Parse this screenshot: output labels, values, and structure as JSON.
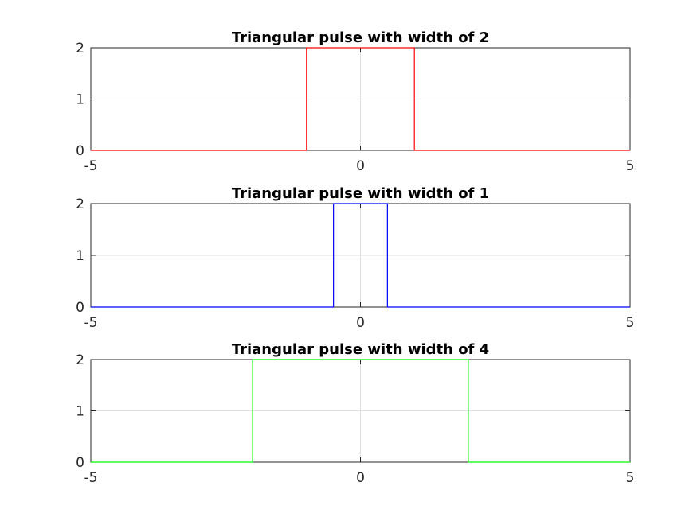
{
  "chart_data": [
    {
      "type": "line",
      "title": "Triangular pulse with width of 2",
      "xlim": [
        -5,
        5
      ],
      "ylim": [
        0,
        2
      ],
      "xticks": [
        -5,
        0,
        5
      ],
      "xtick_labels": [
        "-5",
        "0",
        "5"
      ],
      "yticks": [
        0,
        1,
        2
      ],
      "ytick_labels": [
        "0",
        "1",
        "2"
      ],
      "grid": true,
      "series": [
        {
          "color": "#ff0000",
          "x": [
            -5,
            -1,
            -1,
            1,
            1,
            5
          ],
          "y": [
            0,
            0,
            2,
            2,
            0,
            0
          ]
        }
      ]
    },
    {
      "type": "line",
      "title": "Triangular pulse with width of 1",
      "xlim": [
        -5,
        5
      ],
      "ylim": [
        0,
        2
      ],
      "xticks": [
        -5,
        0,
        5
      ],
      "xtick_labels": [
        "-5",
        "0",
        "5"
      ],
      "yticks": [
        0,
        1,
        2
      ],
      "ytick_labels": [
        "0",
        "1",
        "2"
      ],
      "grid": true,
      "series": [
        {
          "color": "#0000ff",
          "x": [
            -5,
            -0.5,
            -0.5,
            0.5,
            0.5,
            5
          ],
          "y": [
            0,
            0,
            2,
            2,
            0,
            0
          ]
        }
      ]
    },
    {
      "type": "line",
      "title": "Triangular pulse with width of 4",
      "xlim": [
        -5,
        5
      ],
      "ylim": [
        0,
        2
      ],
      "xticks": [
        -5,
        0,
        5
      ],
      "xtick_labels": [
        "-5",
        "0",
        "5"
      ],
      "yticks": [
        0,
        1,
        2
      ],
      "ytick_labels": [
        "0",
        "1",
        "2"
      ],
      "grid": true,
      "series": [
        {
          "color": "#00ff00",
          "x": [
            -5,
            -2,
            -2,
            2,
            2,
            5
          ],
          "y": [
            0,
            0,
            2,
            2,
            0,
            0
          ]
        }
      ]
    }
  ]
}
